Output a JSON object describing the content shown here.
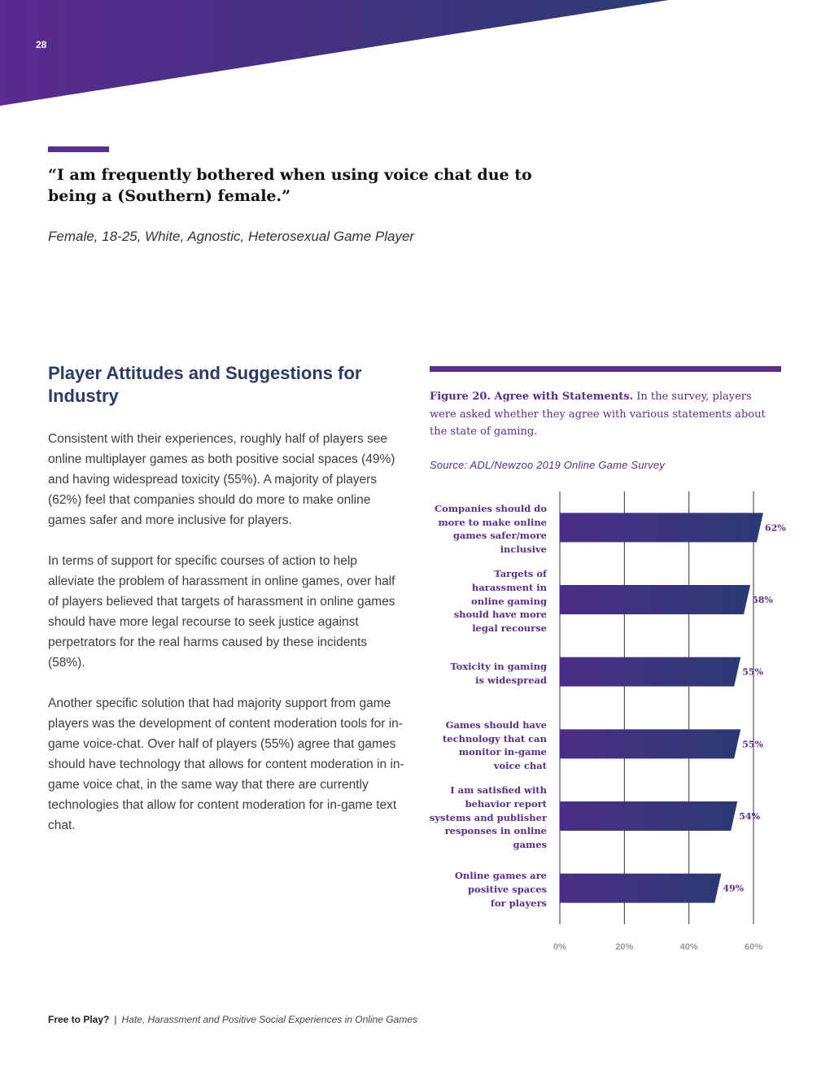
{
  "page": {
    "number": "28"
  },
  "quote": {
    "text": "“I am frequently bothered when using voice chat due to being a (Southern) female.”",
    "attribution": "Female, 18-25, White, Agnostic, Heterosexual Game Player"
  },
  "section": {
    "title": "Player Attitudes and Suggestions for Industry",
    "paragraphs": [
      "Consistent with their experiences, roughly half of players see online multiplayer games as both positive social spaces (49%) and having widespread toxicity (55%). A majority of players (62%) feel that companies should do more to make online games safer and more inclusive for players.",
      "In terms of support for specific courses of action to help alleviate the problem of harassment in online games, over half of players believed that targets of harassment in online games should have more legal recourse to seek justice against perpetrators for the real harms caused by these incidents (58%).",
      "Another specific solution that had majority support from game players was the development of content moderation tools for in-game voice-chat. Over half of players (55%) agree that games should have technology that allows for content moderation in in-game voice chat, in the same way that there are currently technologies that allow for content moderation for in-game text chat."
    ]
  },
  "figure": {
    "label": "Figure 20. Agree with Statements.",
    "caption": "In the survey, players were asked whether they agree with various statements about the state of gaming.",
    "source": "Source: ADL/Newzoo 2019 Online Game Survey"
  },
  "chart_data": {
    "type": "bar",
    "orientation": "horizontal",
    "title": "Agree with Statements",
    "categories": [
      "Companies should do more to make online games safer/more inclusive",
      "Targets of harassment in online gaming should have more legal recourse",
      "Toxicity in gaming is widespread",
      "Games should have technology that can monitor in-game voice chat",
      "I am satisfied with behavior report systems and publisher responses in online games",
      "Online games are positive spaces for players"
    ],
    "category_lines": [
      [
        "Companies should do",
        "more to make online",
        "games safer/more",
        "inclusive"
      ],
      [
        "Targets of",
        "harassment in",
        "online gaming",
        "should have more",
        "legal recourse"
      ],
      [
        "Toxicity in gaming",
        "is widespread"
      ],
      [
        "Games should have",
        "technology that can",
        "monitor in-game",
        "voice chat"
      ],
      [
        "I am satisfied with",
        "behavior report",
        "systems and publisher",
        "responses in online",
        "games"
      ],
      [
        "Online games are",
        "positive spaces",
        "for players"
      ]
    ],
    "values": [
      62,
      58,
      55,
      55,
      54,
      49
    ],
    "value_labels": [
      "62%",
      "58%",
      "55%",
      "55%",
      "54%",
      "49%"
    ],
    "xlim": [
      0,
      60
    ],
    "xticks": [
      0,
      20,
      40,
      60
    ],
    "xtick_labels": [
      "0%",
      "20%",
      "40%",
      "60%"
    ],
    "grid": true,
    "bar_color_start": "#4b2e86",
    "bar_color_end": "#2b3a73"
  },
  "footer": {
    "title": "Free to Play?",
    "separator": "|",
    "subtitle": "Hate, Harassment and Positive Social Experiences in Online Games"
  },
  "colors": {
    "accent": "#5b2d8e",
    "heading": "#2b3a67",
    "banner_left": "#5a2a8f",
    "banner_right": "#2c3a72"
  }
}
